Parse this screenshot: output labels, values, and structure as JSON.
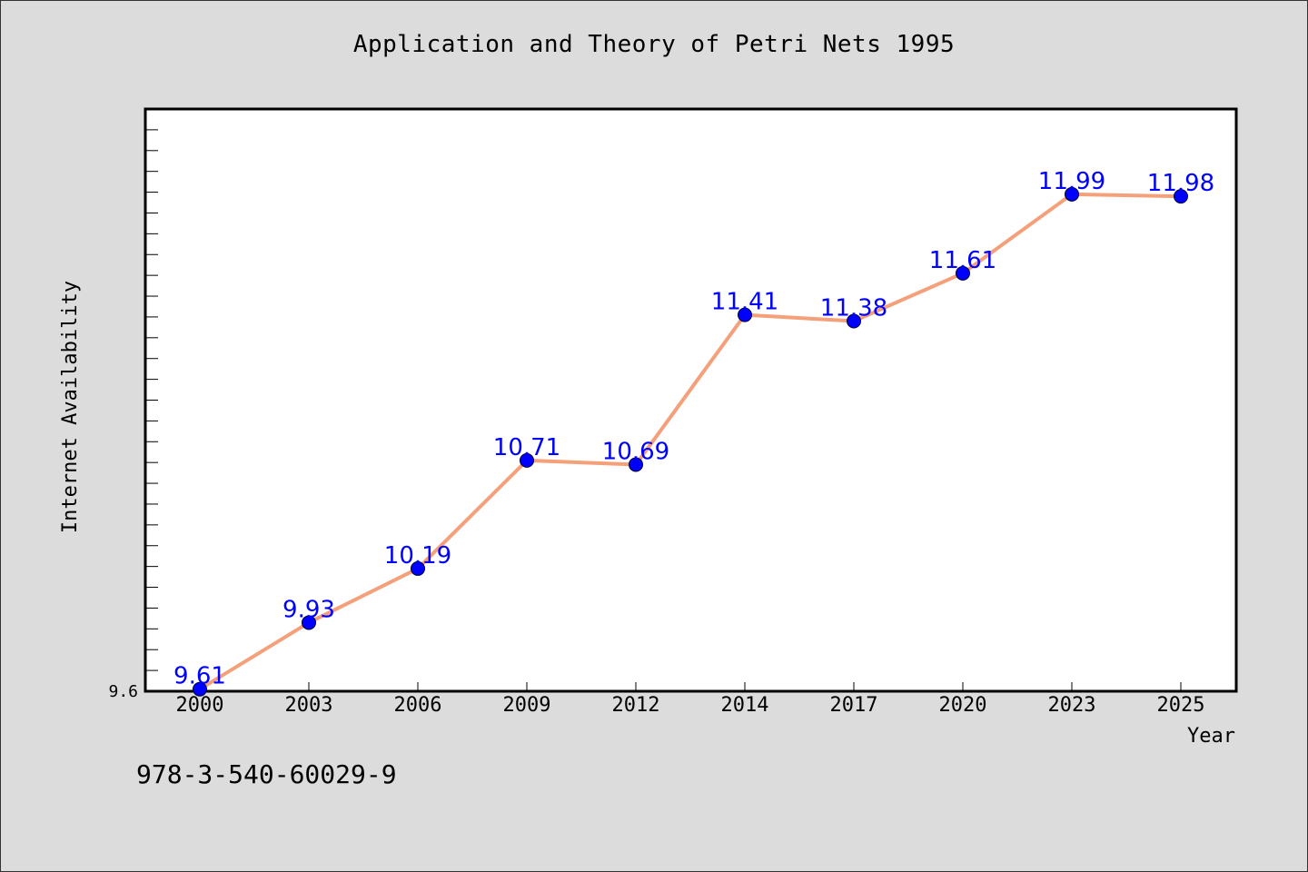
{
  "chart_data": {
    "type": "line",
    "title": "Application and Theory of Petri Nets 1995",
    "xlabel": "Year",
    "ylabel": "Internet Availability",
    "categories": [
      "2000",
      "2003",
      "2006",
      "2009",
      "2012",
      "2014",
      "2017",
      "2020",
      "2023",
      "2025"
    ],
    "series": [
      {
        "values": [
          9.61,
          9.93,
          10.19,
          10.71,
          10.69,
          11.41,
          11.38,
          11.61,
          11.99,
          11.98
        ],
        "labels": [
          "9.61",
          "9.93",
          "10.19",
          "10.71",
          "10.69",
          "11.41",
          "11.38",
          "11.61",
          "11.99",
          "11.98"
        ],
        "line_color": "#f4a07a",
        "marker_color": "#0000ff"
      }
    ],
    "ylim": [
      9.6,
      12.4
    ],
    "ytick_labels": [
      "9.6"
    ],
    "grid": false,
    "legend": "none",
    "background": "#ffffff"
  },
  "footer": {
    "isbn": "978-3-540-60029-9"
  },
  "colors": {
    "page_background": "#dcdcdc",
    "line": "#f4a07a",
    "marker": "#0000ff",
    "data_label": "#0000ff"
  }
}
